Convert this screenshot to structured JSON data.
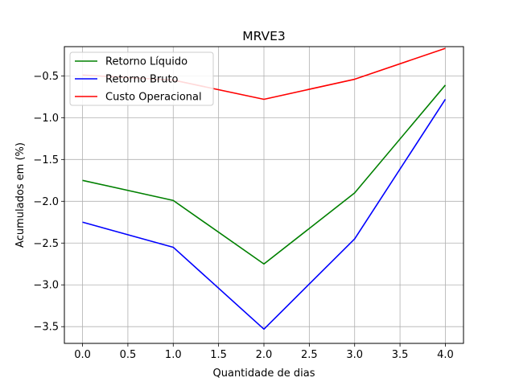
{
  "chart_data": {
    "type": "line",
    "title": "MRVE3",
    "xlabel": "Quantidade de dias",
    "ylabel": "Acumulados em (%)",
    "x": [
      0,
      1,
      2,
      3,
      4
    ],
    "xlim": [
      -0.2,
      4.2
    ],
    "ylim": [
      -3.7,
      -0.15
    ],
    "xticks": [
      0.0,
      0.5,
      1.0,
      1.5,
      2.0,
      2.5,
      3.0,
      3.5,
      4.0
    ],
    "xtick_labels": [
      "0.0",
      "0.5",
      "1.0",
      "1.5",
      "2.0",
      "2.5",
      "3.0",
      "3.5",
      "4.0"
    ],
    "yticks": [
      -0.5,
      -1.0,
      -1.5,
      -2.0,
      -2.5,
      -3.0,
      -3.5
    ],
    "ytick_labels": [
      "−0.5",
      "−1.0",
      "−1.5",
      "−2.0",
      "−2.5",
      "−3.0",
      "−3.5"
    ],
    "grid": true,
    "legend_position": "top-left",
    "series": [
      {
        "name": "Retorno Líquido",
        "color": "#008000",
        "values": [
          -1.75,
          -1.99,
          -2.75,
          -1.9,
          -0.61
        ]
      },
      {
        "name": "Retorno Bruto",
        "color": "#0000ff",
        "values": [
          -2.25,
          -2.55,
          -3.53,
          -2.45,
          -0.78
        ]
      },
      {
        "name": "Custo Operacional",
        "color": "#ff0000",
        "values": [
          -0.49,
          -0.55,
          -0.78,
          -0.54,
          -0.17
        ]
      }
    ]
  }
}
